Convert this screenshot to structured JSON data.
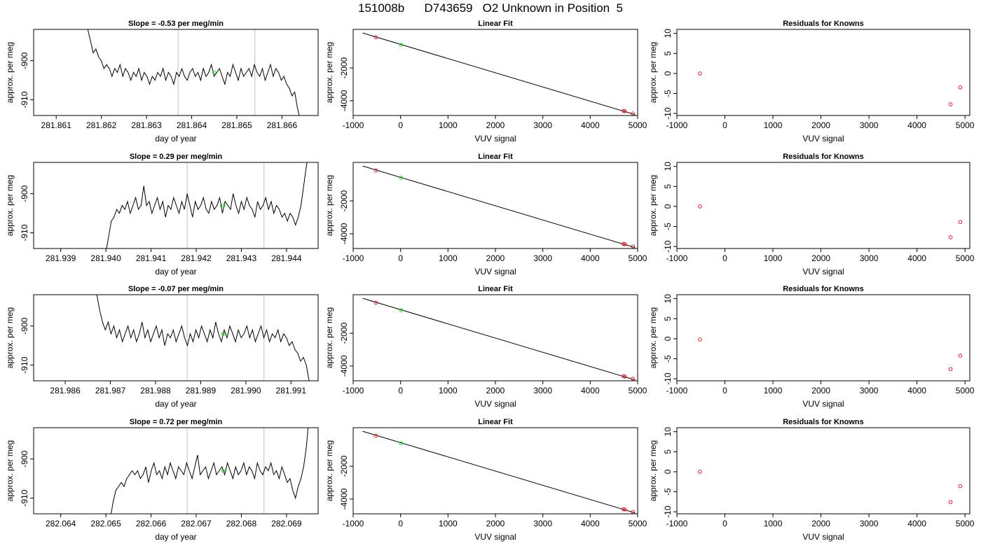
{
  "page_title": "151008b      D743659   O2 Unknown in Position  5",
  "colors": {
    "trace": "#000000",
    "known_point": "#e0202a",
    "unknown_point": "#22dd22",
    "marker_line": "#cccccc",
    "frame": "#000000"
  },
  "chart_data": [
    {
      "type": "line",
      "title": "Slope =  -0.53  per meg/min",
      "xlabel": "day of year",
      "ylabel": "approx. per meg",
      "xlim": [
        281.8605,
        281.8668
      ],
      "ylim": [
        -914.0,
        -892.0
      ],
      "xticks": [
        "281.861",
        "281.862",
        "281.863",
        "281.864",
        "281.865",
        "281.866"
      ],
      "xtick_values": [
        281.861,
        281.862,
        281.863,
        281.864,
        281.865,
        281.866
      ],
      "yticks": [
        "-900",
        "-910"
      ],
      "ytick_values": [
        -900,
        -910
      ],
      "marker_lines_x": [
        281.8637,
        281.8654
      ],
      "unknown_point": {
        "x": 281.8645,
        "y": -903.0
      },
      "trace": {
        "start_x": 281.8617,
        "end_x": 281.8664,
        "values": [
          -892,
          -895,
          -898,
          -897,
          -899,
          -900,
          -902,
          -901,
          -902,
          -904,
          -902,
          -903,
          -901,
          -904,
          -902,
          -903,
          -905,
          -903,
          -904,
          -902,
          -905,
          -903,
          -904,
          -906,
          -904,
          -905,
          -903,
          -904,
          -902,
          -905,
          -903,
          -904,
          -906,
          -903,
          -904,
          -902,
          -904,
          -905,
          -903,
          -902,
          -904,
          -903,
          -905,
          -902,
          -904,
          -903,
          -901,
          -904,
          -903,
          -902,
          -904,
          -906,
          -903,
          -904,
          -901,
          -903,
          -905,
          -902,
          -904,
          -903,
          -902,
          -904,
          -901,
          -903,
          -904,
          -902,
          -905,
          -903,
          -901,
          -904,
          -902,
          -903,
          -905,
          -904,
          -906,
          -907,
          -909,
          -908,
          -912,
          -915
        ]
      }
    },
    {
      "type": "scatter",
      "title": "Linear Fit",
      "xlabel": "VUV signal",
      "ylabel": "approx. per meg",
      "xlim": [
        -1000,
        5000
      ],
      "ylim": [
        -4900,
        350
      ],
      "xticks": [
        "-1000",
        "0",
        "1000",
        "2000",
        "3000",
        "4000",
        "5000"
      ],
      "xtick_values": [
        -1000,
        0,
        1000,
        2000,
        3000,
        4000,
        5000
      ],
      "yticks": [
        "-2000",
        "-4000"
      ],
      "ytick_values": [
        -2000,
        -4000
      ],
      "fit_line": {
        "x": [
          -800,
          4950
        ],
        "y": [
          130,
          -4850
        ]
      },
      "known_points": [
        {
          "x": -520,
          "y": -140
        },
        {
          "x": 4700,
          "y": -4620
        },
        {
          "x": 4730,
          "y": -4640
        },
        {
          "x": 4900,
          "y": -4780
        }
      ],
      "unknown_points": [
        {
          "x": 10,
          "y": -590
        }
      ]
    },
    {
      "type": "scatter",
      "title": "Residuals for Knowns",
      "xlabel": "VUV signal",
      "ylabel": "approx. per meg",
      "xlim": [
        -1000,
        5100
      ],
      "ylim": [
        -10.5,
        11.0
      ],
      "xticks": [
        "-1000",
        "0",
        "1000",
        "2000",
        "3000",
        "4000",
        "5000"
      ],
      "xtick_values": [
        -1000,
        0,
        1000,
        2000,
        3000,
        4000,
        5000
      ],
      "yticks": [
        "10",
        "5",
        "0",
        "-5",
        "-10"
      ],
      "ytick_values": [
        10,
        5,
        0,
        -5,
        -10
      ],
      "known_points": [
        {
          "x": -520,
          "y": 0.0
        },
        {
          "x": 4700,
          "y": -7.7
        },
        {
          "x": 4900,
          "y": -3.5
        }
      ]
    },
    {
      "type": "line",
      "title": "Slope =  0.29  per meg/min",
      "xlabel": "day of year",
      "ylabel": "approx. per meg",
      "xlim": [
        281.9384,
        281.9447
      ],
      "ylim": [
        -914.0,
        -892.0
      ],
      "xticks": [
        "281.939",
        "281.940",
        "281.941",
        "281.942",
        "281.943",
        "281.944"
      ],
      "xtick_values": [
        281.939,
        281.94,
        281.941,
        281.942,
        281.943,
        281.944
      ],
      "yticks": [
        "-900",
        "-910"
      ],
      "ytick_values": [
        -900,
        -910
      ],
      "marker_lines_x": [
        281.9418,
        281.9435
      ],
      "unknown_point": {
        "x": 281.9426,
        "y": -903.0
      },
      "trace": {
        "start_x": 281.94,
        "end_x": 281.9445,
        "values": [
          -915,
          -911,
          -907,
          -906,
          -904,
          -905,
          -903,
          -904,
          -902,
          -905,
          -903,
          -901,
          -904,
          -903,
          -898,
          -903,
          -902,
          -905,
          -903,
          -901,
          -904,
          -902,
          -906,
          -903,
          -904,
          -901,
          -903,
          -905,
          -902,
          -904,
          -900,
          -903,
          -906,
          -902,
          -904,
          -903,
          -901,
          -904,
          -905,
          -902,
          -904,
          -903,
          -901,
          -905,
          -902,
          -903,
          -904,
          -900,
          -903,
          -905,
          -902,
          -904,
          -901,
          -903,
          -904,
          -906,
          -902,
          -904,
          -903,
          -901,
          -904,
          -902,
          -905,
          -903,
          -904,
          -906,
          -905,
          -907,
          -905,
          -906,
          -908,
          -906,
          -903,
          -898,
          -893,
          -889
        ]
      }
    },
    {
      "type": "scatter",
      "title": "Linear Fit",
      "xlabel": "VUV signal",
      "ylabel": "approx. per meg",
      "xlim": [
        -1000,
        5000
      ],
      "ylim": [
        -4900,
        350
      ],
      "xticks": [
        "-1000",
        "0",
        "1000",
        "2000",
        "3000",
        "4000",
        "5000"
      ],
      "xtick_values": [
        -1000,
        0,
        1000,
        2000,
        3000,
        4000,
        5000
      ],
      "yticks": [
        "-2000",
        "-4000"
      ],
      "ytick_values": [
        -2000,
        -4000
      ],
      "fit_line": {
        "x": [
          -800,
          4950
        ],
        "y": [
          130,
          -4850
        ]
      },
      "known_points": [
        {
          "x": -520,
          "y": -140
        },
        {
          "x": 4700,
          "y": -4620
        },
        {
          "x": 4730,
          "y": -4640
        },
        {
          "x": 4900,
          "y": -4780
        }
      ],
      "unknown_points": [
        {
          "x": 10,
          "y": -590
        }
      ]
    },
    {
      "type": "scatter",
      "title": "Residuals for Knowns",
      "xlabel": "VUV signal",
      "ylabel": "approx. per meg",
      "xlim": [
        -1000,
        5100
      ],
      "ylim": [
        -10.5,
        11.0
      ],
      "xticks": [
        "-1000",
        "0",
        "1000",
        "2000",
        "3000",
        "4000",
        "5000"
      ],
      "xtick_values": [
        -1000,
        0,
        1000,
        2000,
        3000,
        4000,
        5000
      ],
      "yticks": [
        "10",
        "5",
        "0",
        "-5",
        "-10"
      ],
      "ytick_values": [
        10,
        5,
        0,
        -5,
        -10
      ],
      "known_points": [
        {
          "x": -520,
          "y": 0.0
        },
        {
          "x": 4700,
          "y": -7.7
        },
        {
          "x": 4900,
          "y": -3.9
        }
      ]
    },
    {
      "type": "line",
      "title": "Slope =  -0.07  per meg/min",
      "xlabel": "day of year",
      "ylabel": "approx. per meg",
      "xlim": [
        281.9853,
        281.9916
      ],
      "ylim": [
        -914.0,
        -892.0
      ],
      "xticks": [
        "281.986",
        "281.987",
        "281.988",
        "281.989",
        "281.990",
        "281.991"
      ],
      "xtick_values": [
        281.986,
        281.987,
        281.988,
        281.989,
        281.99,
        281.991
      ],
      "yticks": [
        "-900",
        "-910"
      ],
      "ytick_values": [
        -900,
        -910
      ],
      "marker_lines_x": [
        281.9887,
        281.9904
      ],
      "unknown_point": {
        "x": 281.9895,
        "y": -902.0
      },
      "trace": {
        "start_x": 281.9867,
        "end_x": 281.9914,
        "values": [
          -892,
          -896,
          -899,
          -901,
          -899,
          -902,
          -900,
          -903,
          -901,
          -904,
          -902,
          -900,
          -903,
          -901,
          -904,
          -902,
          -899,
          -903,
          -901,
          -904,
          -902,
          -900,
          -903,
          -901,
          -905,
          -902,
          -903,
          -901,
          -904,
          -902,
          -900,
          -903,
          -905,
          -902,
          -904,
          -901,
          -903,
          -900,
          -902,
          -904,
          -901,
          -903,
          -899,
          -902,
          -904,
          -901,
          -903,
          -900,
          -902,
          -904,
          -901,
          -903,
          -902,
          -900,
          -903,
          -901,
          -904,
          -902,
          -900,
          -903,
          -901,
          -904,
          -902,
          -903,
          -901,
          -904,
          -902,
          -903,
          -905,
          -904,
          -906,
          -907,
          -909,
          -908,
          -910,
          -914
        ]
      }
    },
    {
      "type": "scatter",
      "title": "Linear Fit",
      "xlabel": "VUV signal",
      "ylabel": "approx. per meg",
      "xlim": [
        -1000,
        5000
      ],
      "ylim": [
        -4900,
        350
      ],
      "xticks": [
        "-1000",
        "0",
        "1000",
        "2000",
        "3000",
        "4000",
        "5000"
      ],
      "xtick_values": [
        -1000,
        0,
        1000,
        2000,
        3000,
        4000,
        5000
      ],
      "yticks": [
        "-2000",
        "-4000"
      ],
      "ytick_values": [
        -2000,
        -4000
      ],
      "fit_line": {
        "x": [
          -800,
          4950
        ],
        "y": [
          130,
          -4850
        ]
      },
      "known_points": [
        {
          "x": -520,
          "y": -140
        },
        {
          "x": 4700,
          "y": -4620
        },
        {
          "x": 4730,
          "y": -4640
        },
        {
          "x": 4900,
          "y": -4780
        }
      ],
      "unknown_points": [
        {
          "x": 10,
          "y": -590
        }
      ]
    },
    {
      "type": "scatter",
      "title": "Residuals for Knowns",
      "xlabel": "VUV signal",
      "ylabel": "approx. per meg",
      "xlim": [
        -1000,
        5100
      ],
      "ylim": [
        -10.5,
        11.0
      ],
      "xticks": [
        "-1000",
        "0",
        "1000",
        "2000",
        "3000",
        "4000",
        "5000"
      ],
      "xtick_values": [
        -1000,
        0,
        1000,
        2000,
        3000,
        4000,
        5000
      ],
      "yticks": [
        "10",
        "5",
        "0",
        "-5",
        "-10"
      ],
      "ytick_values": [
        10,
        5,
        0,
        -5,
        -10
      ],
      "known_points": [
        {
          "x": -520,
          "y": -0.2
        },
        {
          "x": 4700,
          "y": -7.6
        },
        {
          "x": 4900,
          "y": -4.2
        }
      ]
    },
    {
      "type": "line",
      "title": "Slope =  0.72  per meg/min",
      "xlabel": "day of year",
      "ylabel": "approx. per meg",
      "xlim": [
        282.0634,
        282.0697
      ],
      "ylim": [
        -914.0,
        -892.0
      ],
      "xticks": [
        "282.064",
        "282.065",
        "282.066",
        "282.067",
        "282.068",
        "282.069"
      ],
      "xtick_values": [
        282.064,
        282.065,
        282.066,
        282.067,
        282.068,
        282.069
      ],
      "yticks": [
        "-900",
        "-910"
      ],
      "ytick_values": [
        -900,
        -910
      ],
      "marker_lines_x": [
        282.0668,
        282.0685
      ],
      "unknown_point": {
        "x": 282.0676,
        "y": -903.0
      },
      "trace": {
        "start_x": 282.0651,
        "end_x": 282.0695,
        "values": [
          -915,
          -911,
          -908,
          -907,
          -906,
          -907,
          -905,
          -904,
          -903,
          -904,
          -903,
          -905,
          -904,
          -902,
          -906,
          -903,
          -901,
          -904,
          -903,
          -905,
          -902,
          -904,
          -901,
          -903,
          -905,
          -902,
          -903,
          -904,
          -901,
          -903,
          -905,
          -902,
          -899,
          -904,
          -903,
          -902,
          -905,
          -903,
          -901,
          -904,
          -903,
          -902,
          -904,
          -901,
          -903,
          -905,
          -902,
          -904,
          -903,
          -901,
          -904,
          -902,
          -903,
          -905,
          -901,
          -903,
          -904,
          -902,
          -903,
          -901,
          -904,
          -903,
          -905,
          -902,
          -904,
          -906,
          -905,
          -908,
          -910,
          -907,
          -905,
          -902,
          -897,
          -889
        ]
      }
    },
    {
      "type": "scatter",
      "title": "Linear Fit",
      "xlabel": "VUV signal",
      "ylabel": "approx. per meg",
      "xlim": [
        -1000,
        5000
      ],
      "ylim": [
        -4900,
        350
      ],
      "xticks": [
        "-1000",
        "0",
        "1000",
        "2000",
        "3000",
        "4000",
        "5000"
      ],
      "xtick_values": [
        -1000,
        0,
        1000,
        2000,
        3000,
        4000,
        5000
      ],
      "yticks": [
        "-2000",
        "-4000"
      ],
      "ytick_values": [
        -2000,
        -4000
      ],
      "fit_line": {
        "x": [
          -800,
          4950
        ],
        "y": [
          130,
          -4850
        ]
      },
      "known_points": [
        {
          "x": -520,
          "y": -140
        },
        {
          "x": 4700,
          "y": -4620
        },
        {
          "x": 4730,
          "y": -4640
        },
        {
          "x": 4900,
          "y": -4780
        }
      ],
      "unknown_points": [
        {
          "x": 10,
          "y": -590
        }
      ]
    },
    {
      "type": "scatter",
      "title": "Residuals for Knowns",
      "xlabel": "VUV signal",
      "ylabel": "approx. per meg",
      "xlim": [
        -1000,
        5100
      ],
      "ylim": [
        -10.5,
        11.0
      ],
      "xticks": [
        "-1000",
        "0",
        "1000",
        "2000",
        "3000",
        "4000",
        "5000"
      ],
      "xtick_values": [
        -1000,
        0,
        1000,
        2000,
        3000,
        4000,
        5000
      ],
      "yticks": [
        "10",
        "5",
        "0",
        "-5",
        "-10"
      ],
      "ytick_values": [
        10,
        5,
        0,
        -5,
        -10
      ],
      "known_points": [
        {
          "x": -520,
          "y": 0.0
        },
        {
          "x": 4700,
          "y": -7.6
        },
        {
          "x": 4900,
          "y": -3.6
        }
      ]
    }
  ]
}
